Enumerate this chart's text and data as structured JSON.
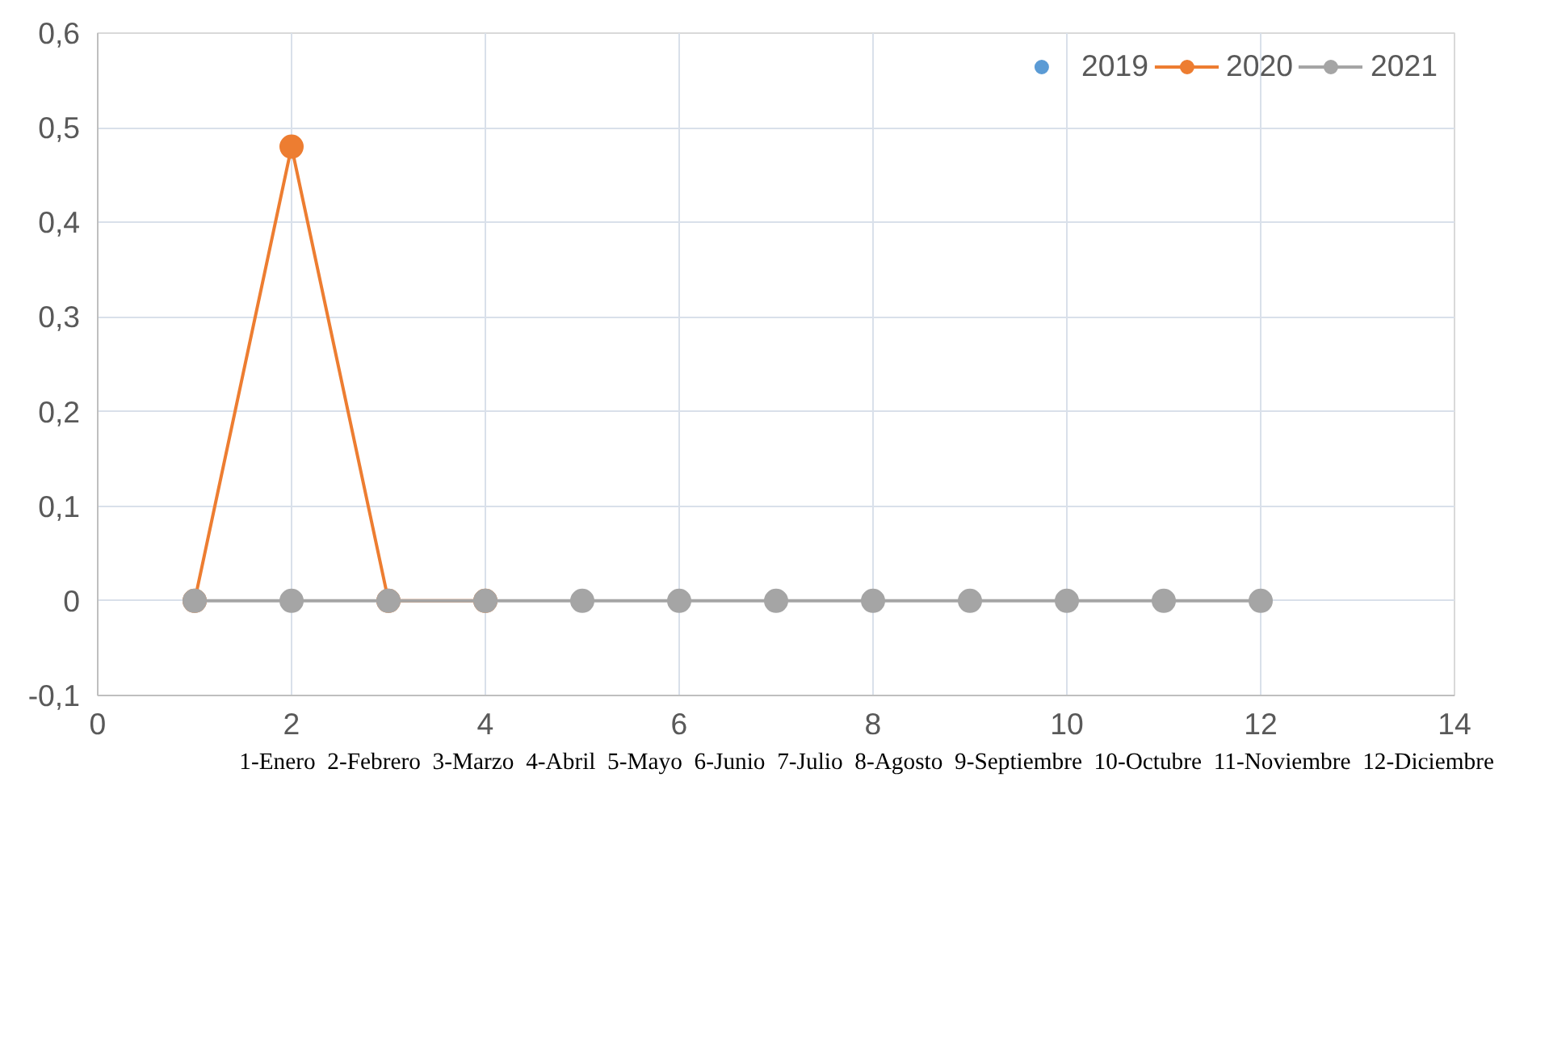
{
  "chart_data": {
    "type": "line",
    "x": [
      1,
      2,
      3,
      4,
      5,
      6,
      7,
      8,
      9,
      10,
      11,
      12
    ],
    "series": [
      {
        "name": "2019",
        "color": "#5b9bd5",
        "values": [
          null,
          null,
          null,
          null,
          null,
          null,
          null,
          null,
          null,
          null,
          null,
          null
        ]
      },
      {
        "name": "2020",
        "color": "#ed7d31",
        "values": [
          0,
          0.48,
          0,
          0,
          null,
          null,
          null,
          null,
          null,
          null,
          null,
          null
        ]
      },
      {
        "name": "2021",
        "color": "#a5a5a5",
        "values": [
          0,
          0,
          0,
          0,
          0,
          0,
          0,
          0,
          0,
          0,
          0,
          0
        ]
      }
    ],
    "xlim": [
      0,
      14
    ],
    "xticks": [
      0,
      2,
      4,
      6,
      8,
      10,
      12,
      14
    ],
    "ylim": [
      -0.1,
      0.6
    ],
    "yticks": [
      {
        "value": -0.1,
        "label": "-0,1"
      },
      {
        "value": 0,
        "label": "0"
      },
      {
        "value": 0.1,
        "label": "0,1"
      },
      {
        "value": 0.2,
        "label": "0,2"
      },
      {
        "value": 0.3,
        "label": "0,3"
      },
      {
        "value": 0.4,
        "label": "0,4"
      },
      {
        "value": 0.5,
        "label": "0,5"
      },
      {
        "value": 0.6,
        "label": "0,6"
      }
    ],
    "grid": true,
    "legend": "top right",
    "marker": "circle",
    "line_style": "solid",
    "annotations": [
      "1-Enero  2-Febrero  3-Marzo  4-Abril  5-Mayo  6-Junio  7-Julio  8-Agosto  9-Septiembre  10-Octubre  11-Noviembre  12-Diciembre"
    ]
  }
}
